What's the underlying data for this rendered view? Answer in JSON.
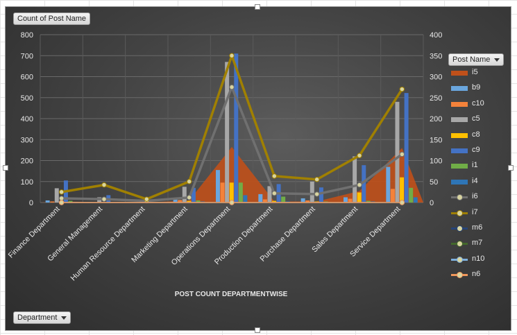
{
  "spreadsheet": {
    "columns": [
      "",
      "",
      "",
      "",
      "",
      "",
      "",
      "",
      "",
      "",
      "",
      ""
    ]
  },
  "chart": {
    "field_button_values": "Count of Post Name",
    "field_button_legend": "Post Name",
    "field_button_axis": "Department",
    "dropdown_icon": "chevron-down-icon"
  },
  "chart_data": {
    "type": "bar",
    "title": "POST COUNT DEPARTMENTWISE",
    "categories": [
      "Finance Department",
      "General Management",
      "Human Resource Department",
      "Marketing Department",
      "Operations Department",
      "Production Department",
      "Purchase Department",
      "Sales Department",
      "Service Department"
    ],
    "primary_axis": {
      "ylim": [
        0,
        800
      ],
      "ticks": [
        0,
        100,
        200,
        300,
        400,
        500,
        600,
        700,
        800
      ]
    },
    "secondary_axis": {
      "ylim": [
        0,
        400
      ],
      "ticks": [
        0,
        50,
        100,
        150,
        200,
        250,
        300,
        350,
        400
      ]
    },
    "grid": true,
    "legend_position": "right",
    "series": [
      {
        "name": "i5",
        "type": "area",
        "axis": "primary",
        "color": "#c0501a",
        "values": [
          5,
          2,
          0,
          10,
          265,
          5,
          5,
          55,
          260
        ]
      },
      {
        "name": "b9",
        "type": "bar",
        "axis": "primary",
        "color": "#6aa6de",
        "values": [
          10,
          3,
          2,
          20,
          155,
          40,
          20,
          25,
          170
        ]
      },
      {
        "name": "c10",
        "type": "bar",
        "axis": "primary",
        "color": "#f4823a",
        "values": [
          5,
          2,
          1,
          12,
          95,
          15,
          10,
          18,
          65
        ]
      },
      {
        "name": "c5",
        "type": "bar",
        "axis": "primary",
        "color": "#a8a8a8",
        "values": [
          68,
          25,
          5,
          75,
          670,
          78,
          100,
          220,
          480
        ]
      },
      {
        "name": "c8",
        "type": "bar",
        "axis": "primary",
        "color": "#ffc000",
        "values": [
          3,
          1,
          0,
          8,
          95,
          8,
          5,
          48,
          120
        ]
      },
      {
        "name": "c9",
        "type": "bar",
        "axis": "primary",
        "color": "#4472c4",
        "values": [
          105,
          35,
          3,
          70,
          710,
          88,
          72,
          178,
          522
        ]
      },
      {
        "name": "i1",
        "type": "bar",
        "axis": "primary",
        "color": "#70ad47",
        "values": [
          8,
          2,
          1,
          10,
          95,
          28,
          5,
          8,
          70
        ]
      },
      {
        "name": "i4",
        "type": "bar",
        "axis": "primary",
        "color": "#2e75b6",
        "values": [
          3,
          1,
          0,
          5,
          35,
          5,
          3,
          5,
          25
        ]
      },
      {
        "name": "i6",
        "type": "line",
        "axis": "secondary",
        "color": "#707070",
        "values": [
          10,
          8,
          4,
          12,
          275,
          22,
          20,
          42,
          115
        ]
      },
      {
        "name": "i7",
        "type": "line",
        "axis": "secondary",
        "color": "#a08000",
        "values": [
          25,
          42,
          8,
          50,
          350,
          63,
          55,
          112,
          270
        ]
      },
      {
        "name": "m6",
        "type": "line",
        "axis": "secondary",
        "color": "#264478",
        "values": [
          0,
          0,
          0,
          0,
          0,
          0,
          0,
          0,
          0
        ]
      },
      {
        "name": "m7",
        "type": "line",
        "axis": "secondary",
        "color": "#43682b",
        "values": [
          0,
          0,
          0,
          0,
          0,
          0,
          0,
          0,
          0
        ]
      },
      {
        "name": "n10",
        "type": "line",
        "axis": "secondary",
        "color": "#7cafdd",
        "values": [
          0,
          0,
          0,
          0,
          0,
          0,
          0,
          0,
          0
        ]
      },
      {
        "name": "n6",
        "type": "line",
        "axis": "secondary",
        "color": "#f1975a",
        "values": [
          0,
          0,
          0,
          0,
          0,
          0,
          0,
          0,
          0
        ]
      }
    ]
  }
}
